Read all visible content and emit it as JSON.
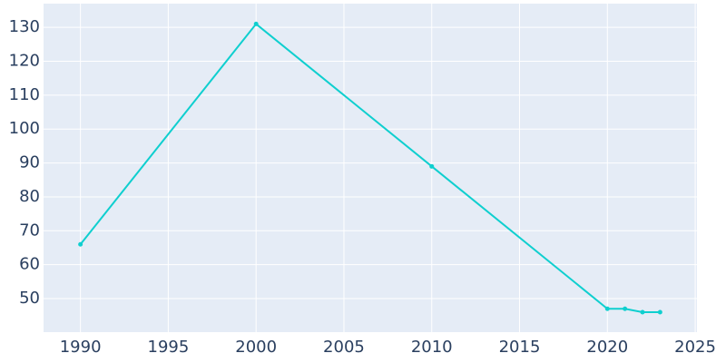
{
  "chart_data": {
    "type": "line",
    "x": [
      1990,
      2000,
      2010,
      2020,
      2021,
      2022,
      2023
    ],
    "series": [
      {
        "color": "#0fcfcf",
        "values": [
          66,
          131,
          89,
          47,
          47,
          46,
          46
        ]
      }
    ],
    "xlim": [
      1987.9,
      2025.1
    ],
    "xticks": [
      1990,
      1995,
      2000,
      2005,
      2010,
      2015,
      2020,
      2025
    ],
    "ylim": [
      40.1,
      137
    ],
    "yticks": [
      50,
      60,
      70,
      80,
      90,
      100,
      110,
      120,
      130
    ],
    "grid": true,
    "background": "#e5ecf6"
  }
}
